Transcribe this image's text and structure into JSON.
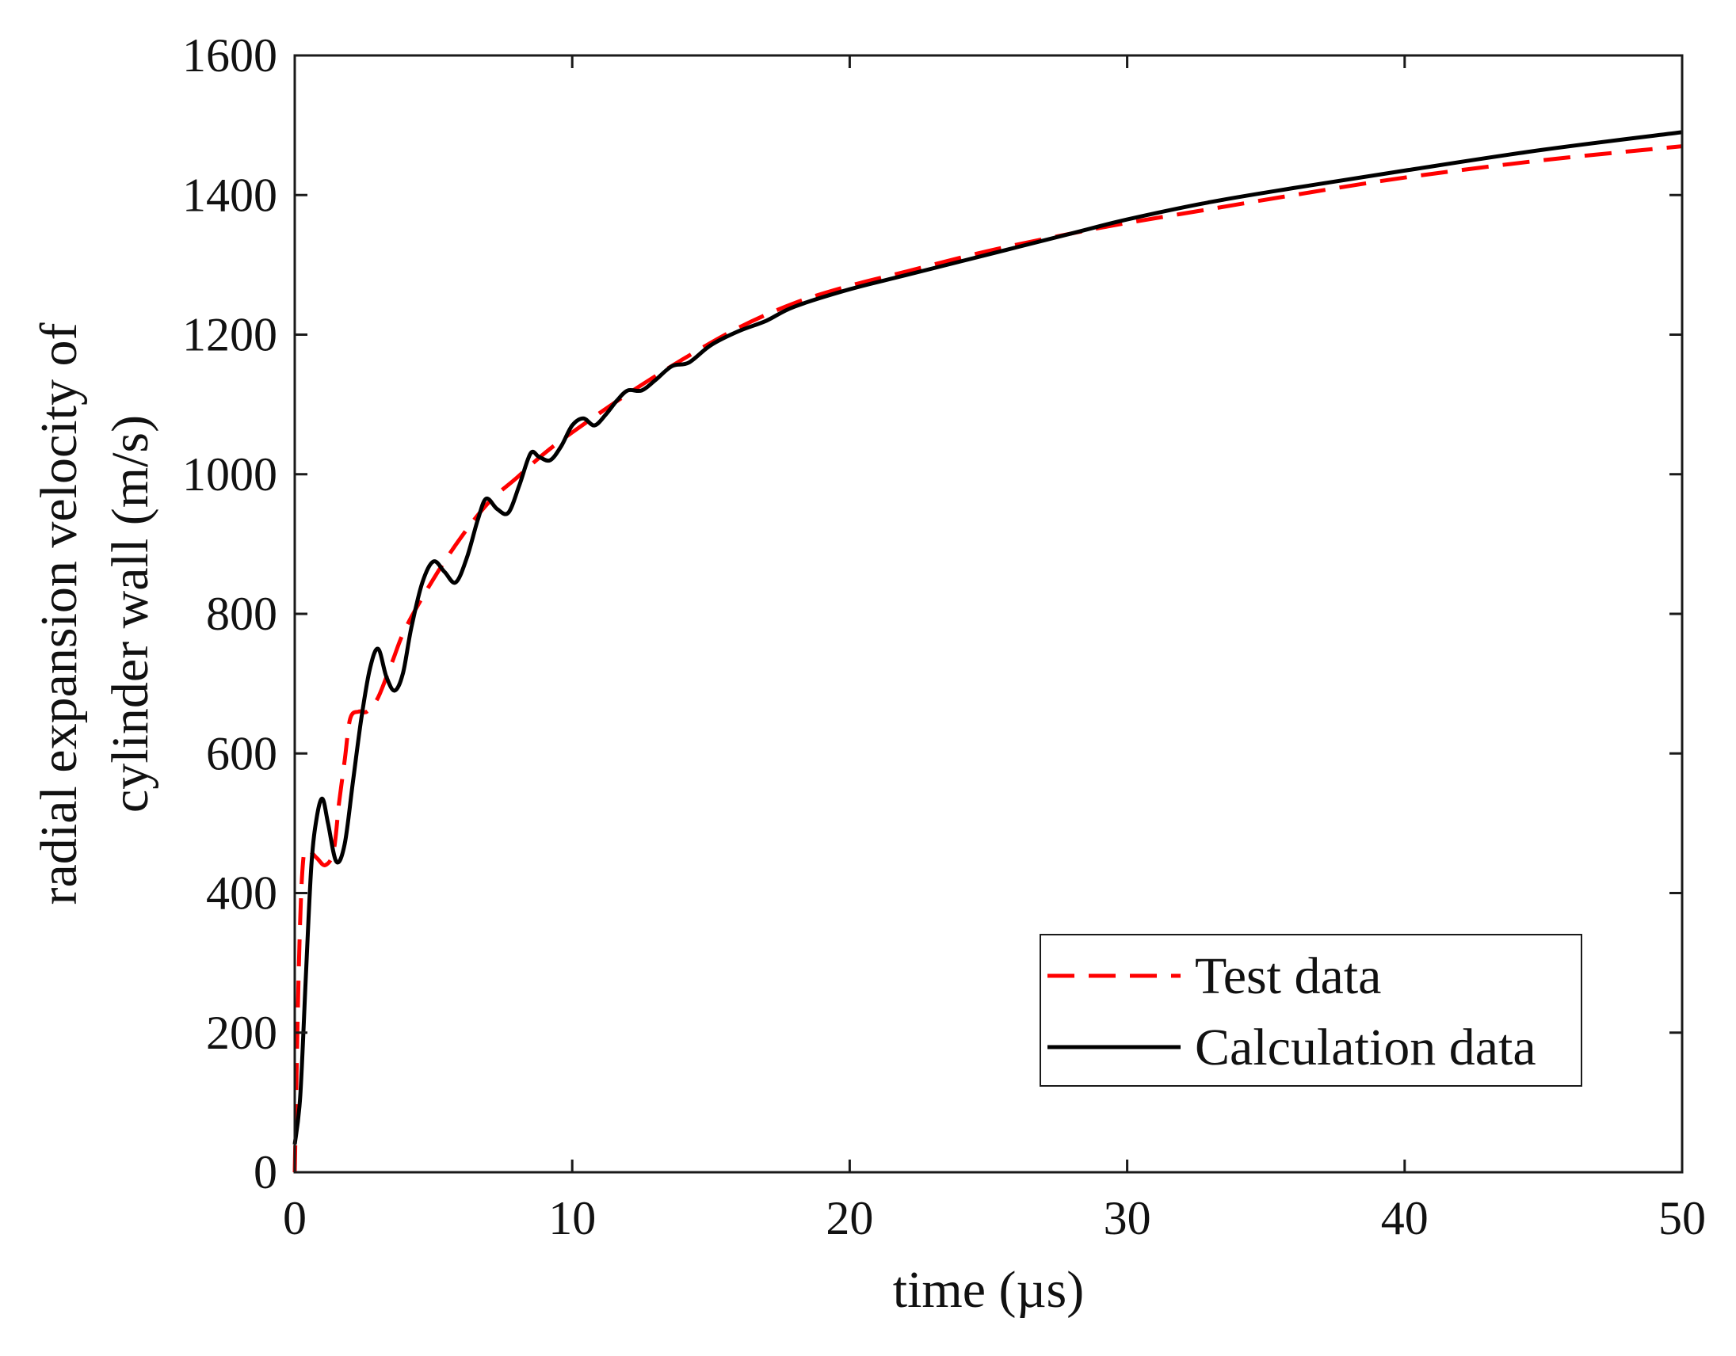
{
  "chart_data": {
    "type": "line",
    "title": "",
    "xlabel": "time (µs)",
    "ylabel_lines": [
      "radial expansion velocity of",
      "cylinder wall (m/s)"
    ],
    "xlim": [
      0,
      50
    ],
    "ylim": [
      0,
      1600
    ],
    "xticks": [
      0,
      10,
      20,
      30,
      40,
      50
    ],
    "yticks": [
      0,
      200,
      400,
      600,
      800,
      1000,
      1200,
      1400,
      1600
    ],
    "grid": false,
    "legend_position": "bottom-right",
    "series": [
      {
        "name": "Test data",
        "color": "#ff0000",
        "style": "dashed",
        "x": [
          0,
          0.15,
          0.3,
          0.5,
          0.8,
          1.1,
          1.4,
          1.6,
          1.8,
          2.0,
          2.3,
          2.6,
          3.0,
          3.5,
          4.0,
          5.0,
          6.0,
          7.0,
          8.0,
          9.0,
          10.0,
          12.0,
          14.0,
          16.0,
          18.0,
          20.0,
          22.0,
          25.0,
          28.0,
          30.0,
          33.0,
          36.0,
          40.0,
          45.0,
          50.0
        ],
        "y": [
          0,
          300,
          445,
          460,
          450,
          440,
          460,
          530,
          590,
          650,
          660,
          660,
          680,
          730,
          780,
          850,
          910,
          960,
          995,
          1030,
          1060,
          1115,
          1165,
          1210,
          1245,
          1270,
          1290,
          1320,
          1345,
          1360,
          1380,
          1400,
          1425,
          1450,
          1470
        ]
      },
      {
        "name": "Calculation data",
        "color": "#000000",
        "style": "solid",
        "x": [
          0,
          0.2,
          0.4,
          0.6,
          0.8,
          1.0,
          1.2,
          1.5,
          1.8,
          2.1,
          2.4,
          2.7,
          3.0,
          3.3,
          3.6,
          3.9,
          4.2,
          4.6,
          5.0,
          5.4,
          5.8,
          6.2,
          6.6,
          6.9,
          7.3,
          7.7,
          8.1,
          8.5,
          8.8,
          9.2,
          9.6,
          10.0,
          10.4,
          10.8,
          11.2,
          11.6,
          12.0,
          12.5,
          13.0,
          13.6,
          14.2,
          15.0,
          16.0,
          17.0,
          18.0,
          20.0,
          22.0,
          25.0,
          28.0,
          30.0,
          33.0,
          36.0,
          40.0,
          45.0,
          50.0
        ],
        "y": [
          40,
          110,
          280,
          440,
          510,
          535,
          500,
          445,
          470,
          560,
          650,
          720,
          750,
          710,
          690,
          715,
          780,
          845,
          875,
          860,
          845,
          880,
          935,
          965,
          950,
          945,
          985,
          1030,
          1025,
          1020,
          1040,
          1070,
          1080,
          1070,
          1085,
          1105,
          1120,
          1120,
          1135,
          1155,
          1160,
          1185,
          1205,
          1220,
          1240,
          1265,
          1285,
          1315,
          1345,
          1365,
          1390,
          1410,
          1435,
          1465,
          1490
        ]
      }
    ]
  }
}
